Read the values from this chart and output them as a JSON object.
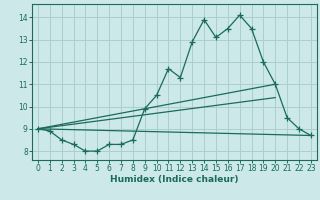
{
  "xlabel": "Humidex (Indice chaleur)",
  "xlim": [
    -0.5,
    23.5
  ],
  "ylim": [
    7.6,
    14.6
  ],
  "yticks": [
    8,
    9,
    10,
    11,
    12,
    13,
    14
  ],
  "xticks": [
    0,
    1,
    2,
    3,
    4,
    5,
    6,
    7,
    8,
    9,
    10,
    11,
    12,
    13,
    14,
    15,
    16,
    17,
    18,
    19,
    20,
    21,
    22,
    23
  ],
  "bg_color": "#cce8e8",
  "grid_color": "#aacfcf",
  "line_color": "#1a6b5a",
  "line1": {
    "x": [
      0,
      1,
      2,
      3,
      4,
      5,
      6,
      7,
      8,
      9,
      10,
      11,
      12,
      13,
      14,
      15,
      16,
      17,
      18,
      19,
      20,
      21,
      22,
      23
    ],
    "y": [
      9.0,
      8.9,
      8.5,
      8.3,
      8.0,
      8.0,
      8.3,
      8.3,
      8.5,
      9.9,
      10.5,
      11.7,
      11.3,
      12.9,
      13.9,
      13.1,
      13.5,
      14.1,
      13.5,
      12.0,
      11.0,
      9.5,
      9.0,
      8.7
    ]
  },
  "line2": {
    "x": [
      0,
      23
    ],
    "y": [
      9.0,
      8.7
    ]
  },
  "line3": {
    "x": [
      0,
      20
    ],
    "y": [
      9.0,
      11.0
    ]
  },
  "line4": {
    "x": [
      0,
      20
    ],
    "y": [
      9.0,
      10.4
    ]
  }
}
